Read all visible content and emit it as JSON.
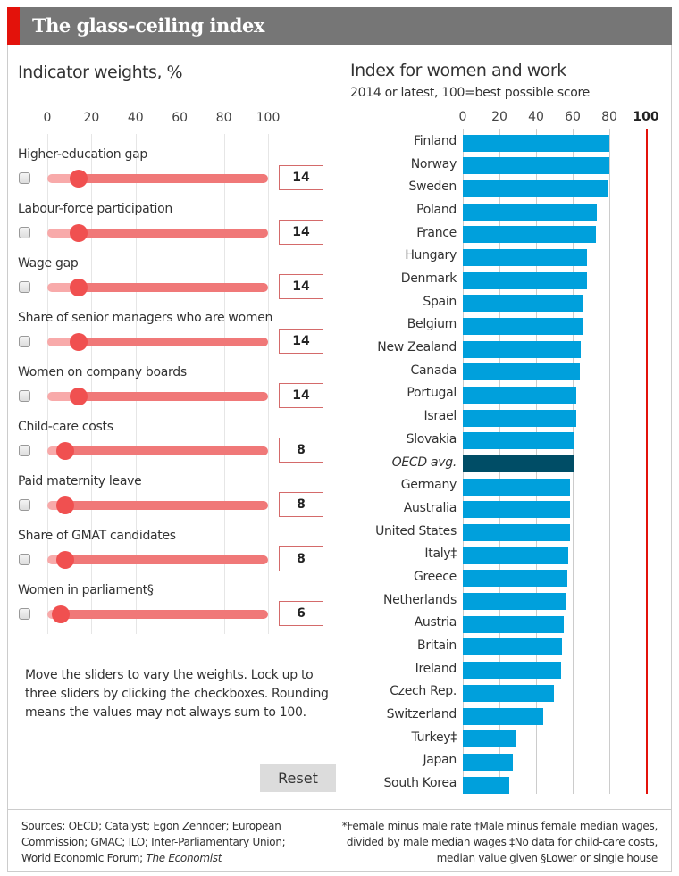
{
  "header": {
    "title": "The glass-ceiling index"
  },
  "weights": {
    "title": "Indicator weights, %",
    "scale_ticks": [
      "0",
      "20",
      "40",
      "60",
      "80",
      "100"
    ],
    "sliders": [
      {
        "label": "Higher-education gap",
        "value": 14,
        "display": "14",
        "locked": false
      },
      {
        "label": "Labour-force participation",
        "value": 14,
        "display": "14",
        "locked": false
      },
      {
        "label": "Wage gap",
        "value": 14,
        "display": "14",
        "locked": false
      },
      {
        "label": "Share of senior managers who are women",
        "value": 14,
        "display": "14",
        "locked": false
      },
      {
        "label": "Women on company boards",
        "value": 14,
        "display": "14",
        "locked": false
      },
      {
        "label": "Child-care costs",
        "value": 8,
        "display": "8",
        "locked": false
      },
      {
        "label": "Paid maternity leave",
        "value": 8,
        "display": "8",
        "locked": false
      },
      {
        "label": "Share of GMAT candidates",
        "value": 8,
        "display": "8",
        "locked": false
      },
      {
        "label": "Women in parliament§",
        "value": 6,
        "display": "6",
        "locked": false
      }
    ],
    "note": "Move the sliders to vary the weights. Lock up to three sliders by clicking the checkboxes. Rounding means the values may not always sum to 100.",
    "reset_label": "Reset",
    "colors": {
      "track_filled": "#f8aaaa",
      "track_rest": "#f07878",
      "thumb": "#f05050"
    }
  },
  "chart_data": {
    "type": "bar",
    "orientation": "horizontal",
    "title": "Index for women and work",
    "subtitle": "2014 or latest, 100=best possible score",
    "xlim": [
      0,
      100
    ],
    "tick_labels": [
      "0",
      "20",
      "40",
      "60",
      "80",
      "100"
    ],
    "reference_line": {
      "value": 100,
      "color": "#e3120b"
    },
    "grid": true,
    "colors": {
      "bar": "#00a0dc",
      "highlight": "#004d66"
    },
    "categories": [
      "Finland",
      "Norway",
      "Sweden",
      "Poland",
      "France",
      "Hungary",
      "Denmark",
      "Spain",
      "Belgium",
      "New Zealand",
      "Canada",
      "Portugal",
      "Israel",
      "Slovakia",
      "OECD avg.",
      "Germany",
      "Australia",
      "United States",
      "Italy‡",
      "Greece",
      "Netherlands",
      "Austria",
      "Britain",
      "Ireland",
      "Czech Rep.",
      "Switzerland",
      "Turkey‡",
      "Japan",
      "South Korea"
    ],
    "values": [
      79.9,
      79.8,
      79.2,
      73,
      72.5,
      67.6,
      67.6,
      65.8,
      65.8,
      64.5,
      63.9,
      62,
      62,
      61,
      60.3,
      58.5,
      58.5,
      58.5,
      57.8,
      57.2,
      56.5,
      55.2,
      54.3,
      53.6,
      49.8,
      43.8,
      29.1,
      27.1,
      25.3
    ],
    "highlight": "OECD avg."
  },
  "footer": {
    "sources": "Sources: OECD; Catalyst; Egon Zehnder; European Commission; GMAC; ILO; Inter-Parliamentary Union; World Economic Forum; ",
    "sources_italic": "The Economist",
    "notes_line1": "*Female minus male rate  †Male minus female median wages,",
    "notes_line2": "divided by male median wages  ‡No data for child-care costs,",
    "notes_line3": "median value given  §Lower or single house"
  }
}
